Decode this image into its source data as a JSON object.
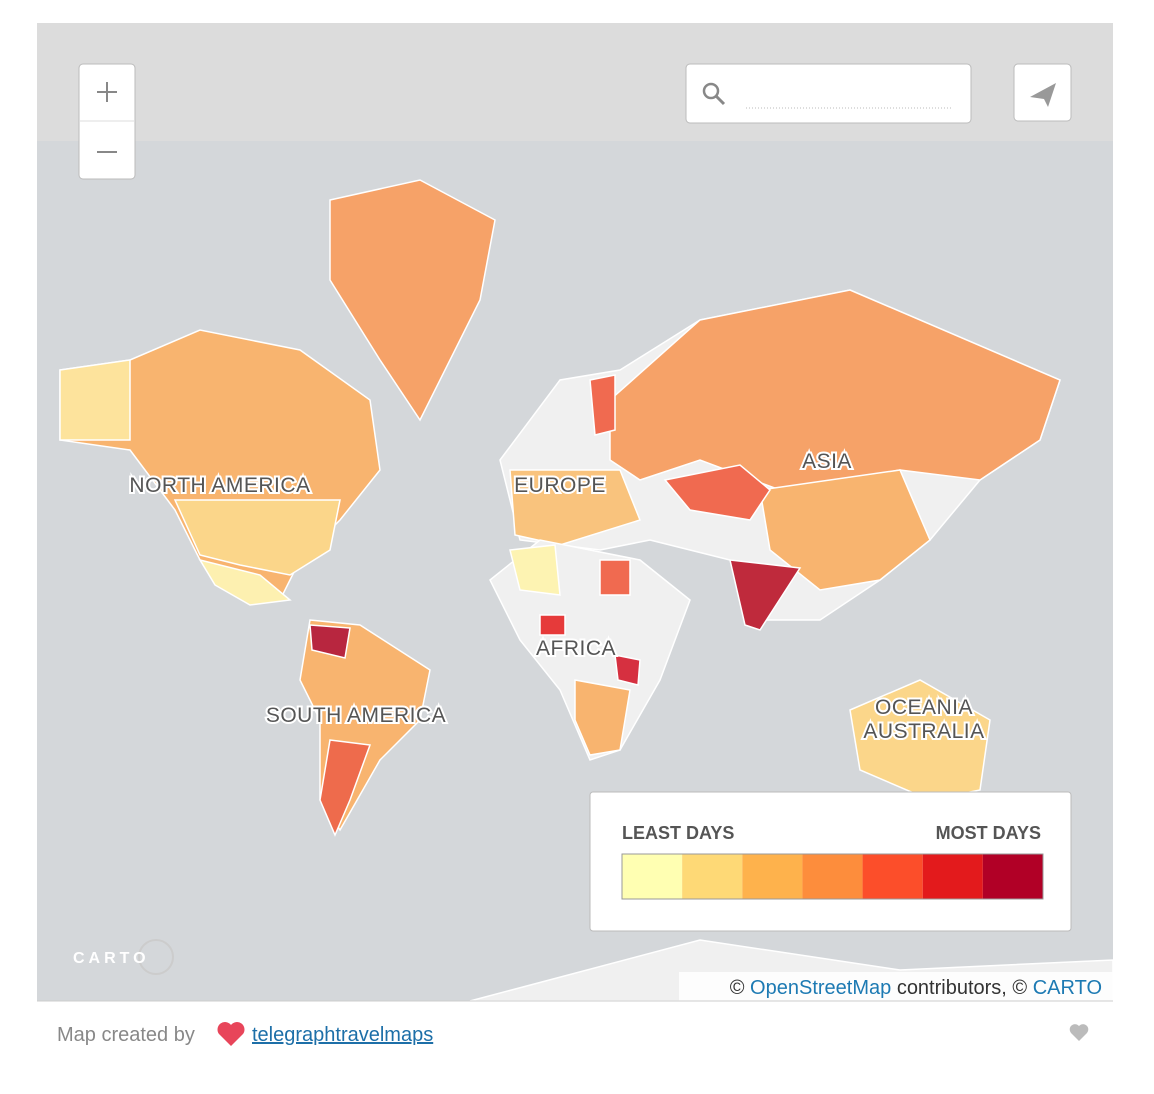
{
  "map": {
    "region_labels": [
      "NORTH AMERICA",
      "EUROPE",
      "ASIA",
      "AFRICA",
      "SOUTH AMERICA",
      "OCEANIA",
      "AUSTRALIA"
    ],
    "legend": {
      "low_label": "LEAST DAYS",
      "high_label": "MOST DAYS",
      "colors": [
        "#ffffb2",
        "#fed976",
        "#feb24c",
        "#fd8d3c",
        "#fc4e2a",
        "#e31a1c",
        "#b10026"
      ]
    },
    "logo": "CARTO",
    "attribution": {
      "prefix": "©",
      "osm": "OpenStreetMap",
      "middle": "contributors, ©",
      "carto": "CARTO"
    }
  },
  "footer": {
    "text": "Map created by",
    "author": "telegraphtravelmaps"
  }
}
